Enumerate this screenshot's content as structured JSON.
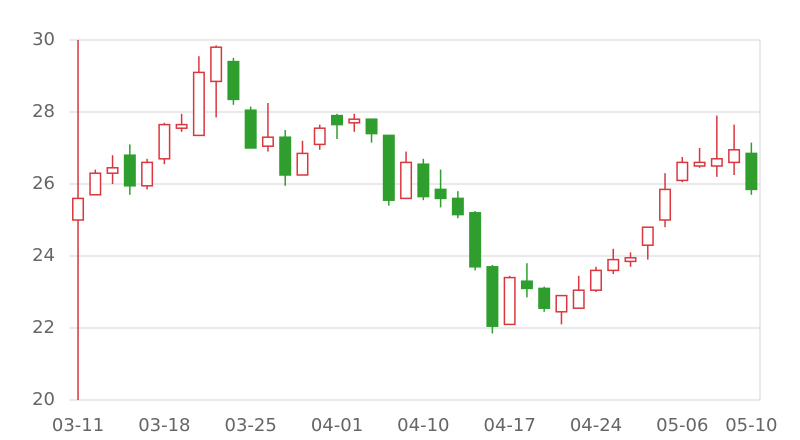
{
  "chart_data": {
    "type": "candlestick",
    "categories": [
      "03-11",
      null,
      null,
      null,
      null,
      "03-18",
      null,
      null,
      null,
      null,
      "03-25",
      null,
      null,
      null,
      null,
      "04-01",
      null,
      null,
      null,
      null,
      "04-10",
      null,
      null,
      null,
      null,
      "04-17",
      null,
      null,
      null,
      null,
      "04-24",
      null,
      null,
      null,
      null,
      "05-06",
      null,
      null,
      null,
      "05-10"
    ],
    "open": [
      25.0,
      25.7,
      26.3,
      26.8,
      25.95,
      26.7,
      27.55,
      27.35,
      28.85,
      29.4,
      28.05,
      27.05,
      27.3,
      26.25,
      27.1,
      27.9,
      27.7,
      27.8,
      27.35,
      25.6,
      26.55,
      25.85,
      25.6,
      25.2,
      23.7,
      22.1,
      23.3,
      23.1,
      22.45,
      22.55,
      23.05,
      23.6,
      23.85,
      24.3,
      25.0,
      26.1,
      26.5,
      26.5,
      26.6,
      26.85
    ],
    "close": [
      25.6,
      26.3,
      26.45,
      25.95,
      26.6,
      27.65,
      27.65,
      29.1,
      29.8,
      28.35,
      27.0,
      27.3,
      26.25,
      26.85,
      27.55,
      27.65,
      27.8,
      27.4,
      25.55,
      26.6,
      25.65,
      25.6,
      25.15,
      23.7,
      22.05,
      23.4,
      23.1,
      22.55,
      22.9,
      23.05,
      23.6,
      23.9,
      23.95,
      24.8,
      25.85,
      26.6,
      26.6,
      26.7,
      26.95,
      25.85
    ],
    "low": [
      20,
      25.7,
      26.0,
      25.7,
      25.85,
      26.55,
      27.45,
      27.35,
      27.85,
      28.2,
      27.0,
      26.9,
      25.95,
      26.25,
      26.95,
      27.25,
      27.45,
      27.15,
      25.4,
      25.6,
      25.55,
      25.35,
      25.05,
      23.6,
      21.85,
      22.1,
      22.85,
      22.45,
      22.1,
      22.55,
      23.0,
      23.5,
      23.7,
      23.9,
      24.8,
      26.05,
      26.45,
      26.2,
      26.25,
      25.7
    ],
    "high": [
      30,
      26.4,
      26.8,
      27.1,
      26.7,
      27.7,
      27.95,
      29.55,
      29.85,
      29.5,
      28.15,
      28.25,
      27.5,
      27.2,
      27.65,
      27.95,
      27.95,
      27.8,
      27.35,
      26.9,
      26.7,
      26.4,
      25.8,
      25.25,
      23.75,
      23.45,
      23.8,
      23.15,
      22.9,
      23.45,
      23.7,
      24.2,
      24.1,
      24.8,
      26.3,
      26.75,
      27.0,
      27.9,
      27.65,
      27.15
    ],
    "up_color": "#d9363e",
    "down_color": "#2f9e2f",
    "ylim": [
      20,
      30
    ],
    "yticks": [
      20,
      22,
      24,
      26,
      28,
      30
    ],
    "grid": true
  }
}
